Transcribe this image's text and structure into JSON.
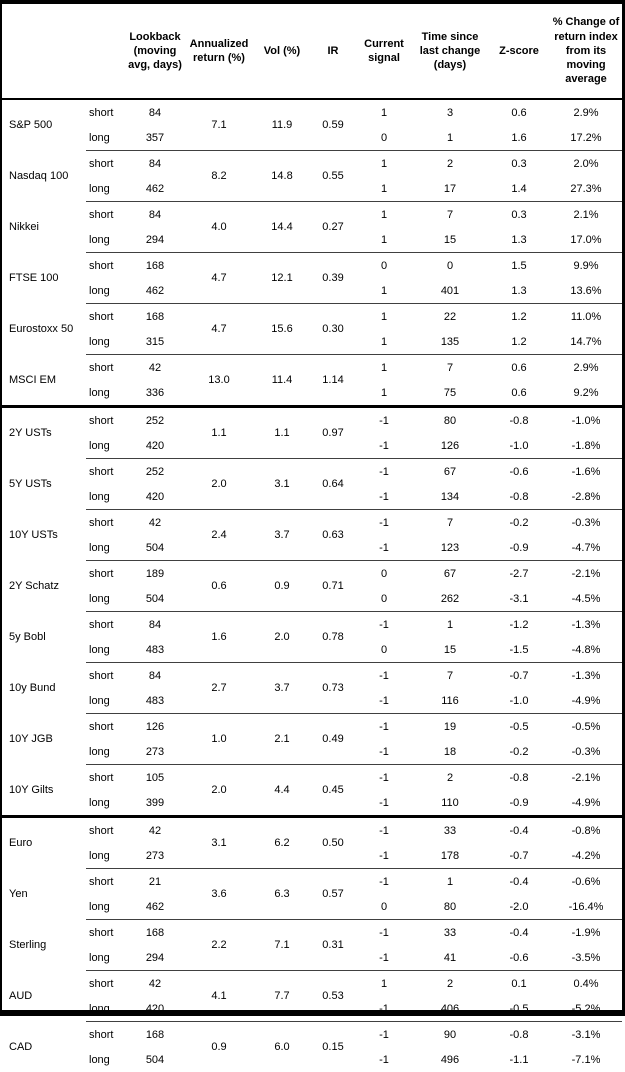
{
  "table": {
    "header": {
      "lookback": "Lookback (moving avg, days)",
      "annualized_return": "Annualized return (%)",
      "vol": "Vol (%)",
      "ir": "IR",
      "current_signal": "Current signal",
      "time_since": "Time since last change (days)",
      "z_score": "Z-score",
      "pct_change": "% Change of return index from its moving average"
    },
    "sections": [
      {
        "assets": [
          {
            "name": "S&P 500",
            "annualized_return": "7.1",
            "vol": "11.9",
            "ir": "0.59",
            "rows": [
              {
                "period": "short",
                "lookback": "84",
                "signal": "1",
                "time_since": "3",
                "z_score": "0.6",
                "pct_change": "2.9%"
              },
              {
                "period": "long",
                "lookback": "357",
                "signal": "0",
                "time_since": "1",
                "z_score": "1.6",
                "pct_change": "17.2%"
              }
            ]
          },
          {
            "name": "Nasdaq 100",
            "annualized_return": "8.2",
            "vol": "14.8",
            "ir": "0.55",
            "rows": [
              {
                "period": "short",
                "lookback": "84",
                "signal": "1",
                "time_since": "2",
                "z_score": "0.3",
                "pct_change": "2.0%"
              },
              {
                "period": "long",
                "lookback": "462",
                "signal": "1",
                "time_since": "17",
                "z_score": "1.4",
                "pct_change": "27.3%"
              }
            ]
          },
          {
            "name": "Nikkei",
            "annualized_return": "4.0",
            "vol": "14.4",
            "ir": "0.27",
            "rows": [
              {
                "period": "short",
                "lookback": "84",
                "signal": "1",
                "time_since": "7",
                "z_score": "0.3",
                "pct_change": "2.1%"
              },
              {
                "period": "long",
                "lookback": "294",
                "signal": "1",
                "time_since": "15",
                "z_score": "1.3",
                "pct_change": "17.0%"
              }
            ]
          },
          {
            "name": "FTSE 100",
            "annualized_return": "4.7",
            "vol": "12.1",
            "ir": "0.39",
            "rows": [
              {
                "period": "short",
                "lookback": "168",
                "signal": "0",
                "time_since": "0",
                "z_score": "1.5",
                "pct_change": "9.9%"
              },
              {
                "period": "long",
                "lookback": "462",
                "signal": "1",
                "time_since": "401",
                "z_score": "1.3",
                "pct_change": "13.6%"
              }
            ]
          },
          {
            "name": "Eurostoxx 50",
            "annualized_return": "4.7",
            "vol": "15.6",
            "ir": "0.30",
            "rows": [
              {
                "period": "short",
                "lookback": "168",
                "signal": "1",
                "time_since": "22",
                "z_score": "1.2",
                "pct_change": "11.0%"
              },
              {
                "period": "long",
                "lookback": "315",
                "signal": "1",
                "time_since": "135",
                "z_score": "1.2",
                "pct_change": "14.7%"
              }
            ]
          },
          {
            "name": "MSCI EM",
            "annualized_return": "13.0",
            "vol": "11.4",
            "ir": "1.14",
            "rows": [
              {
                "period": "short",
                "lookback": "42",
                "signal": "1",
                "time_since": "7",
                "z_score": "0.6",
                "pct_change": "2.9%"
              },
              {
                "period": "long",
                "lookback": "336",
                "signal": "1",
                "time_since": "75",
                "z_score": "0.6",
                "pct_change": "9.2%"
              }
            ]
          }
        ]
      },
      {
        "assets": [
          {
            "name": "2Y USTs",
            "annualized_return": "1.1",
            "vol": "1.1",
            "ir": "0.97",
            "rows": [
              {
                "period": "short",
                "lookback": "252",
                "signal": "-1",
                "time_since": "80",
                "z_score": "-0.8",
                "pct_change": "-1.0%"
              },
              {
                "period": "long",
                "lookback": "420",
                "signal": "-1",
                "time_since": "126",
                "z_score": "-1.0",
                "pct_change": "-1.8%"
              }
            ]
          },
          {
            "name": "5Y USTs",
            "annualized_return": "2.0",
            "vol": "3.1",
            "ir": "0.64",
            "rows": [
              {
                "period": "short",
                "lookback": "252",
                "signal": "-1",
                "time_since": "67",
                "z_score": "-0.6",
                "pct_change": "-1.6%"
              },
              {
                "period": "long",
                "lookback": "420",
                "signal": "-1",
                "time_since": "134",
                "z_score": "-0.8",
                "pct_change": "-2.8%"
              }
            ]
          },
          {
            "name": "10Y USTs",
            "annualized_return": "2.4",
            "vol": "3.7",
            "ir": "0.63",
            "rows": [
              {
                "period": "short",
                "lookback": "42",
                "signal": "-1",
                "time_since": "7",
                "z_score": "-0.2",
                "pct_change": "-0.3%"
              },
              {
                "period": "long",
                "lookback": "504",
                "signal": "-1",
                "time_since": "123",
                "z_score": "-0.9",
                "pct_change": "-4.7%"
              }
            ]
          },
          {
            "name": "2Y Schatz",
            "annualized_return": "0.6",
            "vol": "0.9",
            "ir": "0.71",
            "rows": [
              {
                "period": "short",
                "lookback": "189",
                "signal": "0",
                "time_since": "67",
                "z_score": "-2.7",
                "pct_change": "-2.1%"
              },
              {
                "period": "long",
                "lookback": "504",
                "signal": "0",
                "time_since": "262",
                "z_score": "-3.1",
                "pct_change": "-4.5%"
              }
            ]
          },
          {
            "name": "5y Bobl",
            "annualized_return": "1.6",
            "vol": "2.0",
            "ir": "0.78",
            "rows": [
              {
                "period": "short",
                "lookback": "84",
                "signal": "-1",
                "time_since": "1",
                "z_score": "-1.2",
                "pct_change": "-1.3%"
              },
              {
                "period": "long",
                "lookback": "483",
                "signal": "0",
                "time_since": "15",
                "z_score": "-1.5",
                "pct_change": "-4.8%"
              }
            ]
          },
          {
            "name": "10y Bund",
            "annualized_return": "2.7",
            "vol": "3.7",
            "ir": "0.73",
            "rows": [
              {
                "period": "short",
                "lookback": "84",
                "signal": "-1",
                "time_since": "7",
                "z_score": "-0.7",
                "pct_change": "-1.3%"
              },
              {
                "period": "long",
                "lookback": "483",
                "signal": "-1",
                "time_since": "116",
                "z_score": "-1.0",
                "pct_change": "-4.9%"
              }
            ]
          },
          {
            "name": "10Y JGB",
            "annualized_return": "1.0",
            "vol": "2.1",
            "ir": "0.49",
            "rows": [
              {
                "period": "short",
                "lookback": "126",
                "signal": "-1",
                "time_since": "19",
                "z_score": "-0.5",
                "pct_change": "-0.5%"
              },
              {
                "period": "long",
                "lookback": "273",
                "signal": "-1",
                "time_since": "18",
                "z_score": "-0.2",
                "pct_change": "-0.3%"
              }
            ]
          },
          {
            "name": "10Y Gilts",
            "annualized_return": "2.0",
            "vol": "4.4",
            "ir": "0.45",
            "rows": [
              {
                "period": "short",
                "lookback": "105",
                "signal": "-1",
                "time_since": "2",
                "z_score": "-0.8",
                "pct_change": "-2.1%"
              },
              {
                "period": "long",
                "lookback": "399",
                "signal": "-1",
                "time_since": "110",
                "z_score": "-0.9",
                "pct_change": "-4.9%"
              }
            ]
          }
        ]
      },
      {
        "assets": [
          {
            "name": "Euro",
            "annualized_return": "3.1",
            "vol": "6.2",
            "ir": "0.50",
            "rows": [
              {
                "period": "short",
                "lookback": "42",
                "signal": "-1",
                "time_since": "33",
                "z_score": "-0.4",
                "pct_change": "-0.8%"
              },
              {
                "period": "long",
                "lookback": "273",
                "signal": "-1",
                "time_since": "178",
                "z_score": "-0.7",
                "pct_change": "-4.2%"
              }
            ]
          },
          {
            "name": "Yen",
            "annualized_return": "3.6",
            "vol": "6.3",
            "ir": "0.57",
            "rows": [
              {
                "period": "short",
                "lookback": "21",
                "signal": "-1",
                "time_since": "1",
                "z_score": "-0.4",
                "pct_change": "-0.6%"
              },
              {
                "period": "long",
                "lookback": "462",
                "signal": "0",
                "time_since": "80",
                "z_score": "-2.0",
                "pct_change": "-16.4%"
              }
            ]
          },
          {
            "name": "Sterling",
            "annualized_return": "2.2",
            "vol": "7.1",
            "ir": "0.31",
            "rows": [
              {
                "period": "short",
                "lookback": "168",
                "signal": "-1",
                "time_since": "33",
                "z_score": "-0.4",
                "pct_change": "-1.9%"
              },
              {
                "period": "long",
                "lookback": "294",
                "signal": "-1",
                "time_since": "41",
                "z_score": "-0.6",
                "pct_change": "-3.5%"
              }
            ]
          },
          {
            "name": "AUD",
            "annualized_return": "4.1",
            "vol": "7.7",
            "ir": "0.53",
            "rows": [
              {
                "period": "short",
                "lookback": "42",
                "signal": "1",
                "time_since": "2",
                "z_score": "0.1",
                "pct_change": "0.4%"
              },
              {
                "period": "long",
                "lookback": "420",
                "signal": "-1",
                "time_since": "406",
                "z_score": "-0.5",
                "pct_change": "-5.2%"
              }
            ]
          },
          {
            "name": "CAD",
            "annualized_return": "0.9",
            "vol": "6.0",
            "ir": "0.15",
            "rows": [
              {
                "period": "short",
                "lookback": "168",
                "signal": "-1",
                "time_since": "90",
                "z_score": "-0.8",
                "pct_change": "-3.1%"
              },
              {
                "period": "long",
                "lookback": "504",
                "signal": "-1",
                "time_since": "496",
                "z_score": "-1.1",
                "pct_change": "-7.1%"
              }
            ]
          }
        ]
      }
    ]
  }
}
